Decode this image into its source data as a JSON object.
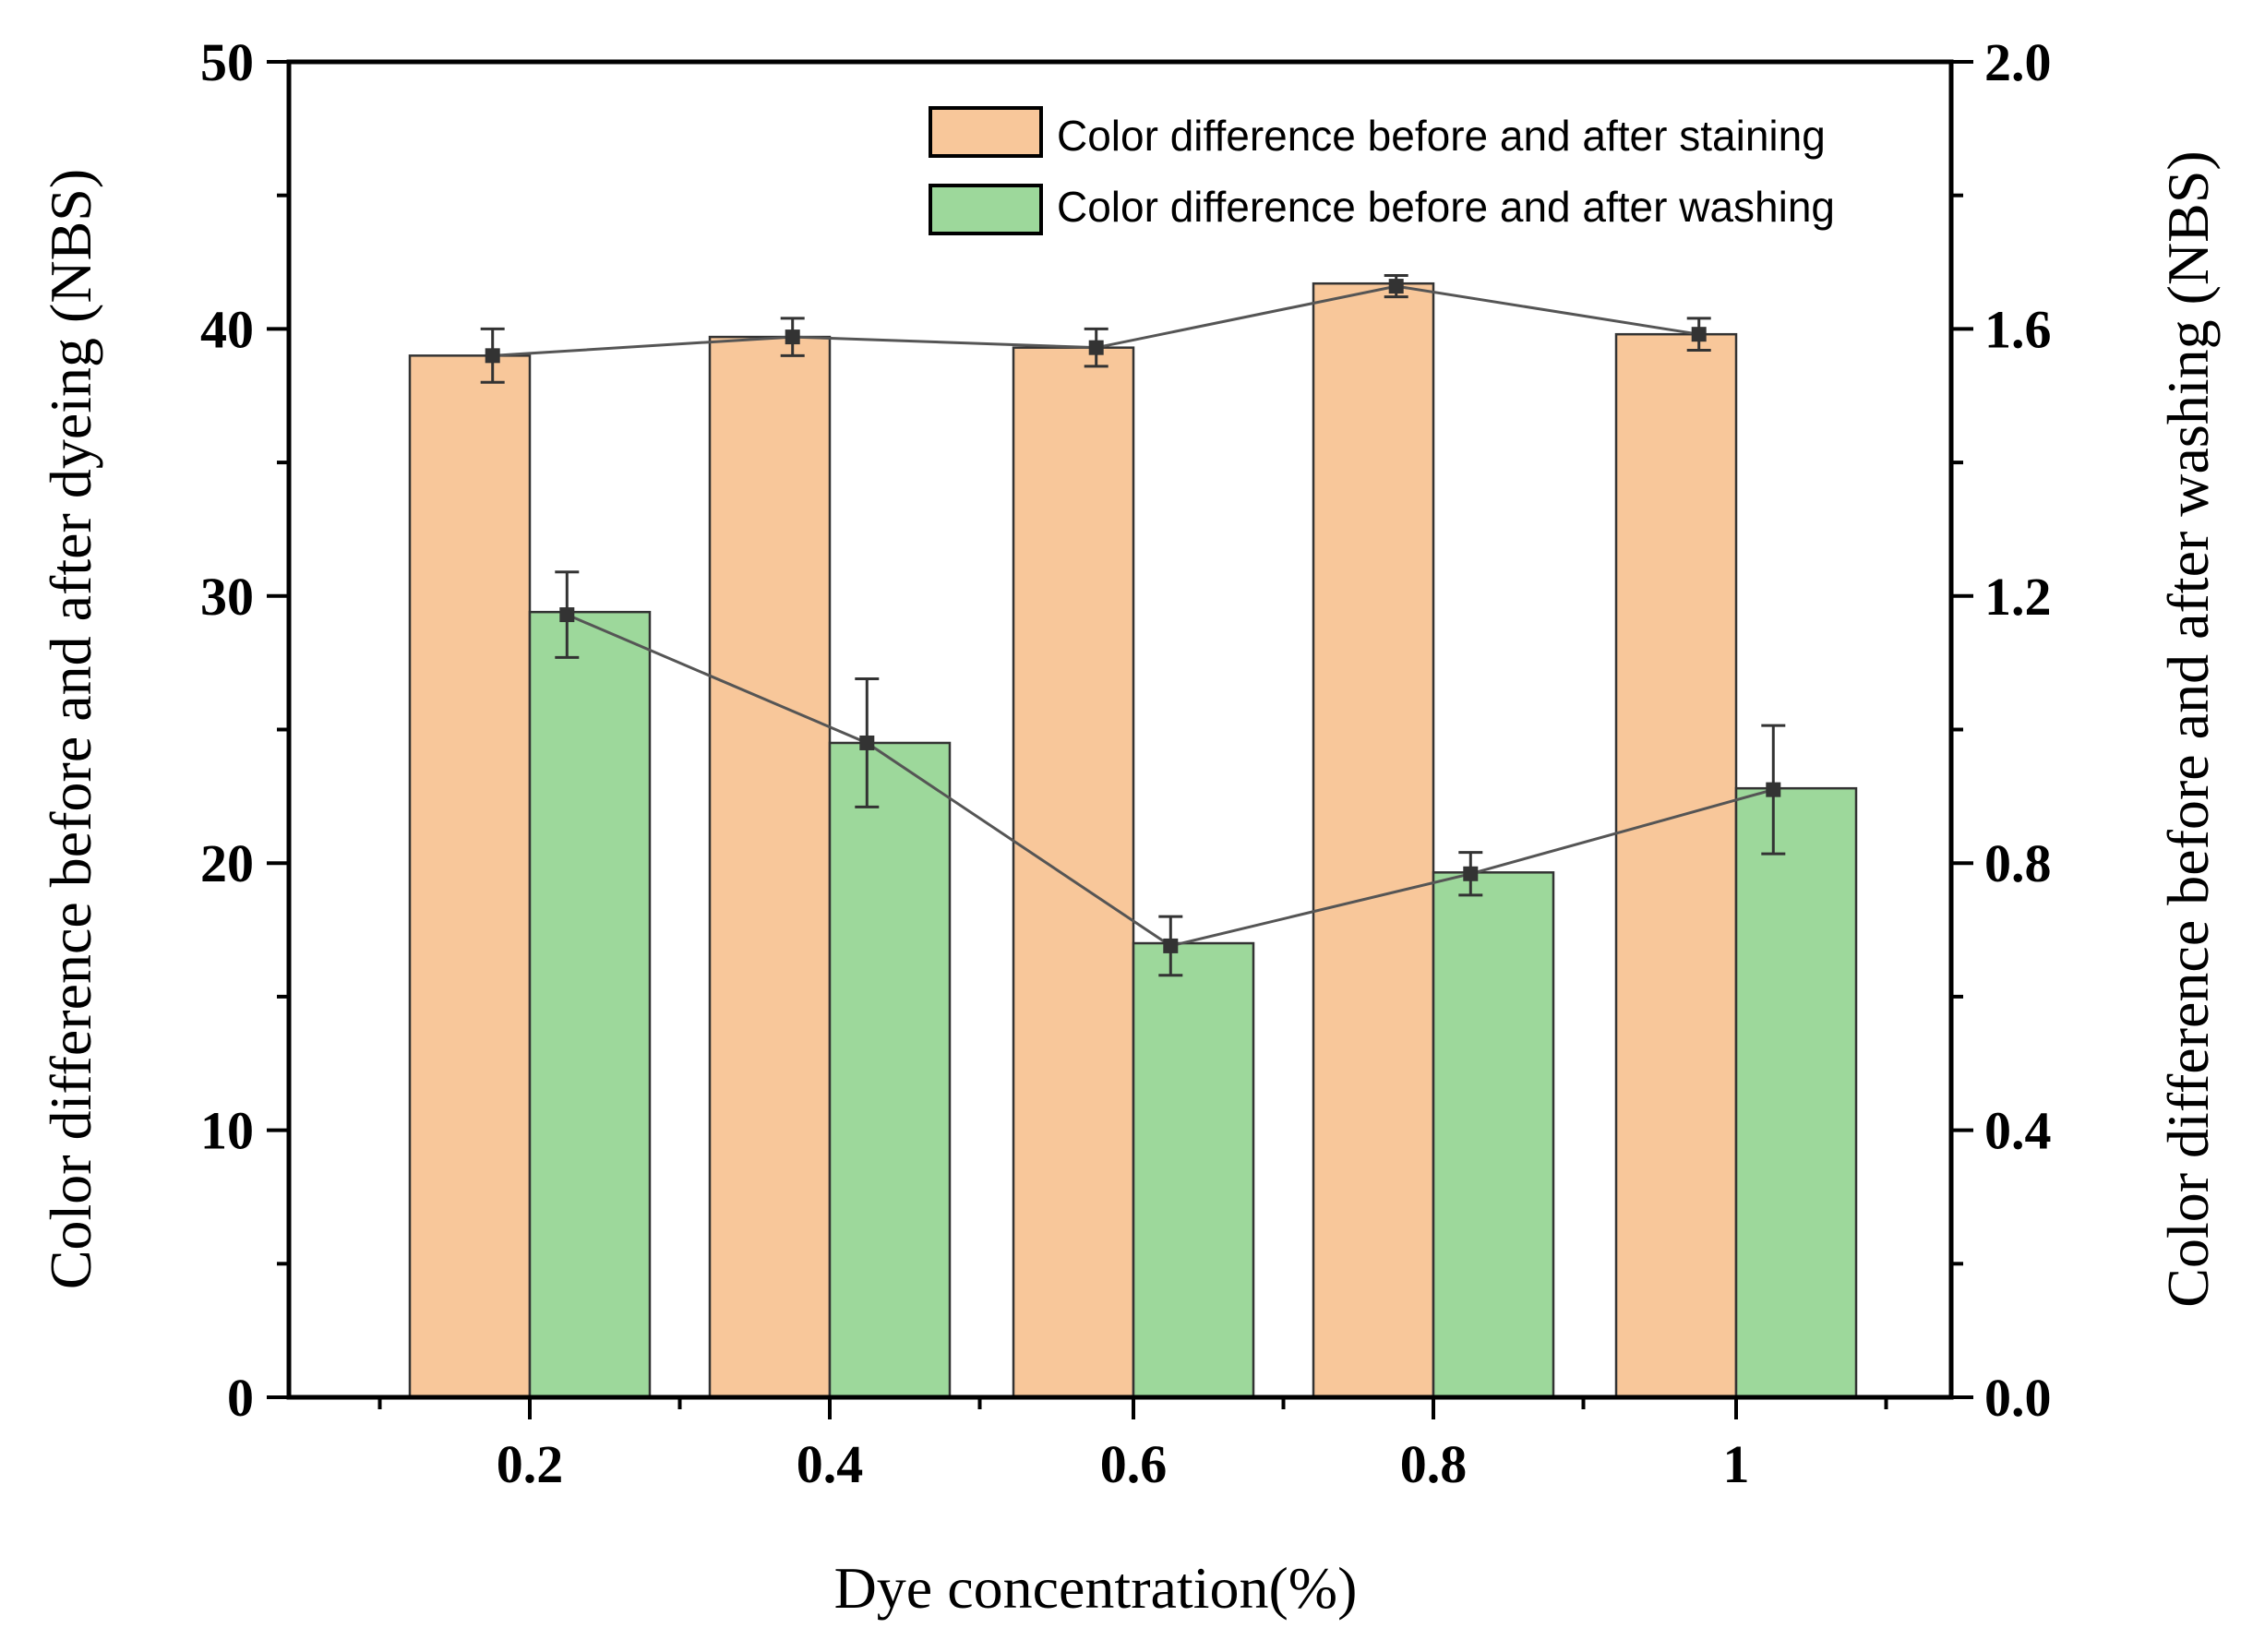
{
  "chart_data": {
    "type": "bar",
    "title": "",
    "xlabel": "Dye concentration(%)",
    "ylabel_left": "Color difference before and after dyeing (NBS)",
    "ylabel_right": "Color difference before and after washing (NBS)",
    "categories": [
      "0.2",
      "0.4",
      "0.6",
      "0.8",
      "1"
    ],
    "ylim_left": [
      0,
      50
    ],
    "ylim_right": [
      0,
      2.0
    ],
    "yticks_left": [
      "0",
      "10",
      "20",
      "30",
      "40",
      "50"
    ],
    "yticks_right": [
      "0.0",
      "0.4",
      "0.8",
      "1.2",
      "1.6",
      "2.0"
    ],
    "grid": false,
    "legend_position": "top-right",
    "series": [
      {
        "name": "Color difference before and after staining",
        "axis": "left",
        "color": "#F8C79A",
        "values": [
          39.0,
          39.7,
          39.3,
          41.7,
          39.8
        ],
        "line_values": [
          39.0,
          39.7,
          39.3,
          41.6,
          39.8
        ],
        "errors": [
          1.0,
          0.7,
          0.7,
          0.4,
          0.6
        ]
      },
      {
        "name": "Color difference before and after washing",
        "axis": "right",
        "color": "#9DD89B",
        "values": [
          1.176,
          0.98,
          0.68,
          0.786,
          0.912
        ],
        "line_values": [
          1.172,
          0.98,
          0.676,
          0.784,
          0.91
        ],
        "errors": [
          0.064,
          0.096,
          0.044,
          0.032,
          0.096
        ]
      }
    ]
  }
}
